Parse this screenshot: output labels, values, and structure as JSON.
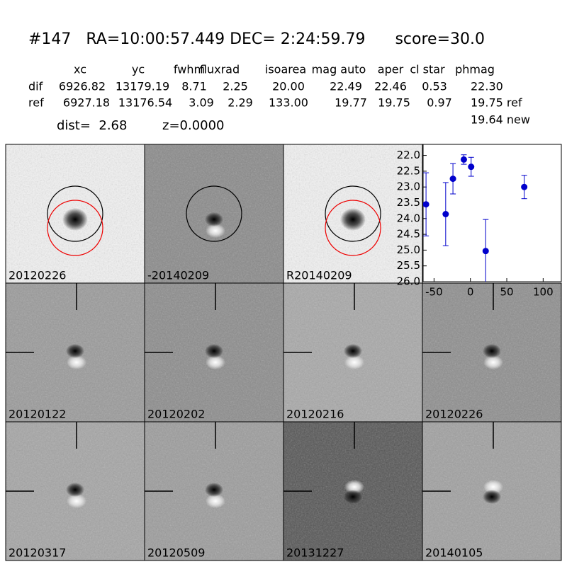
{
  "header": {
    "title": "#147   RA=10:00:57.449 DEC= 2:24:59.79      score=30.0",
    "dist": "dist=  2.68",
    "z": "z=0.0000"
  },
  "table": {
    "columns": [
      "xc",
      "yc",
      "fwhm",
      "fluxrad",
      "isoarea",
      "mag auto",
      "aper",
      "cl star",
      "phmag"
    ],
    "rows": [
      [
        "dif",
        "6926.82",
        "13179.19",
        "8.71",
        "2.25",
        "20.00",
        "22.49",
        "22.46",
        "0.53",
        "22.30"
      ],
      [
        "ref",
        "6927.18",
        "13176.54",
        "3.09",
        "2.29",
        "133.00",
        "19.77",
        "19.75",
        "0.97",
        "19.75 ref"
      ]
    ],
    "extra": "19.64 new"
  },
  "stamps": [
    "20120226",
    "-20140209",
    "R20140209",
    "20120122",
    "20120202",
    "20120216",
    "20120226",
    "20120317",
    "20120509",
    "20131227",
    "20140105"
  ],
  "chart_data": {
    "type": "scatter",
    "x": [
      -61,
      -34,
      -24,
      -9,
      1,
      21,
      74
    ],
    "values": [
      23.55,
      23.86,
      22.74,
      22.13,
      22.36,
      25.03,
      23.0
    ],
    "errors": [
      1.0,
      1.0,
      0.48,
      0.15,
      0.3,
      1.0,
      0.37
    ],
    "color": "#0000cc",
    "xlim": [
      -65,
      125
    ],
    "xticks": [
      -50,
      0,
      50,
      100
    ],
    "ylim": [
      26.0,
      21.65
    ],
    "y_inverted": true,
    "yticks": [
      {
        "value": 22,
        "label": "22.0"
      },
      {
        "value": 22.5,
        "label": "22.5"
      },
      {
        "value": 23,
        "label": "23.0"
      },
      {
        "value": 23.5,
        "label": "23.5"
      },
      {
        "value": 24,
        "label": "24.0"
      },
      {
        "value": 24.5,
        "label": "24.5"
      },
      {
        "value": 25,
        "label": "25.0"
      },
      {
        "value": 25.5,
        "label": "25.5"
      },
      {
        "value": 26,
        "label": "26.0"
      }
    ],
    "grid": false
  }
}
